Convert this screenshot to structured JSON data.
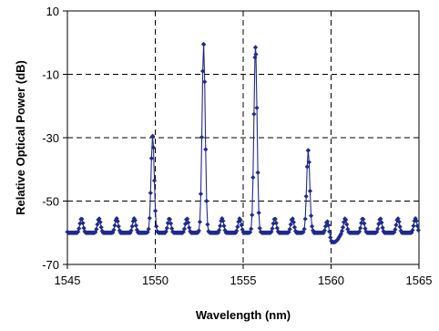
{
  "chart_data": {
    "type": "line",
    "xlabel": "Wavelength (nm)",
    "ylabel": "Relative Optical Power (dB)",
    "xlim": [
      1545,
      1565
    ],
    "ylim": [
      -70,
      10
    ],
    "x_ticks": [
      1545,
      1550,
      1555,
      1560,
      1565
    ],
    "y_ticks": [
      10,
      -10,
      -30,
      -50,
      -70
    ],
    "x_tick_labels": [
      "1545",
      "1550",
      "1555",
      "1560",
      "1565"
    ],
    "y_tick_labels": [
      "10",
      "-10",
      "-30",
      "-50",
      "-70"
    ],
    "grid": "dashed vertical at 1550, 1555, 1560; dashed horizontal at -10, -30, -50",
    "marker": "diamond",
    "series_color": "#1f2a8c",
    "background_floor_dB": -60,
    "side_lobe_period_nm": 1.0,
    "peaks": [
      {
        "x": 1549.85,
        "y": -29.5
      },
      {
        "x": 1552.75,
        "y": -0.5
      },
      {
        "x": 1555.7,
        "y": -1.5
      },
      {
        "x": 1558.7,
        "y": -34
      }
    ]
  }
}
